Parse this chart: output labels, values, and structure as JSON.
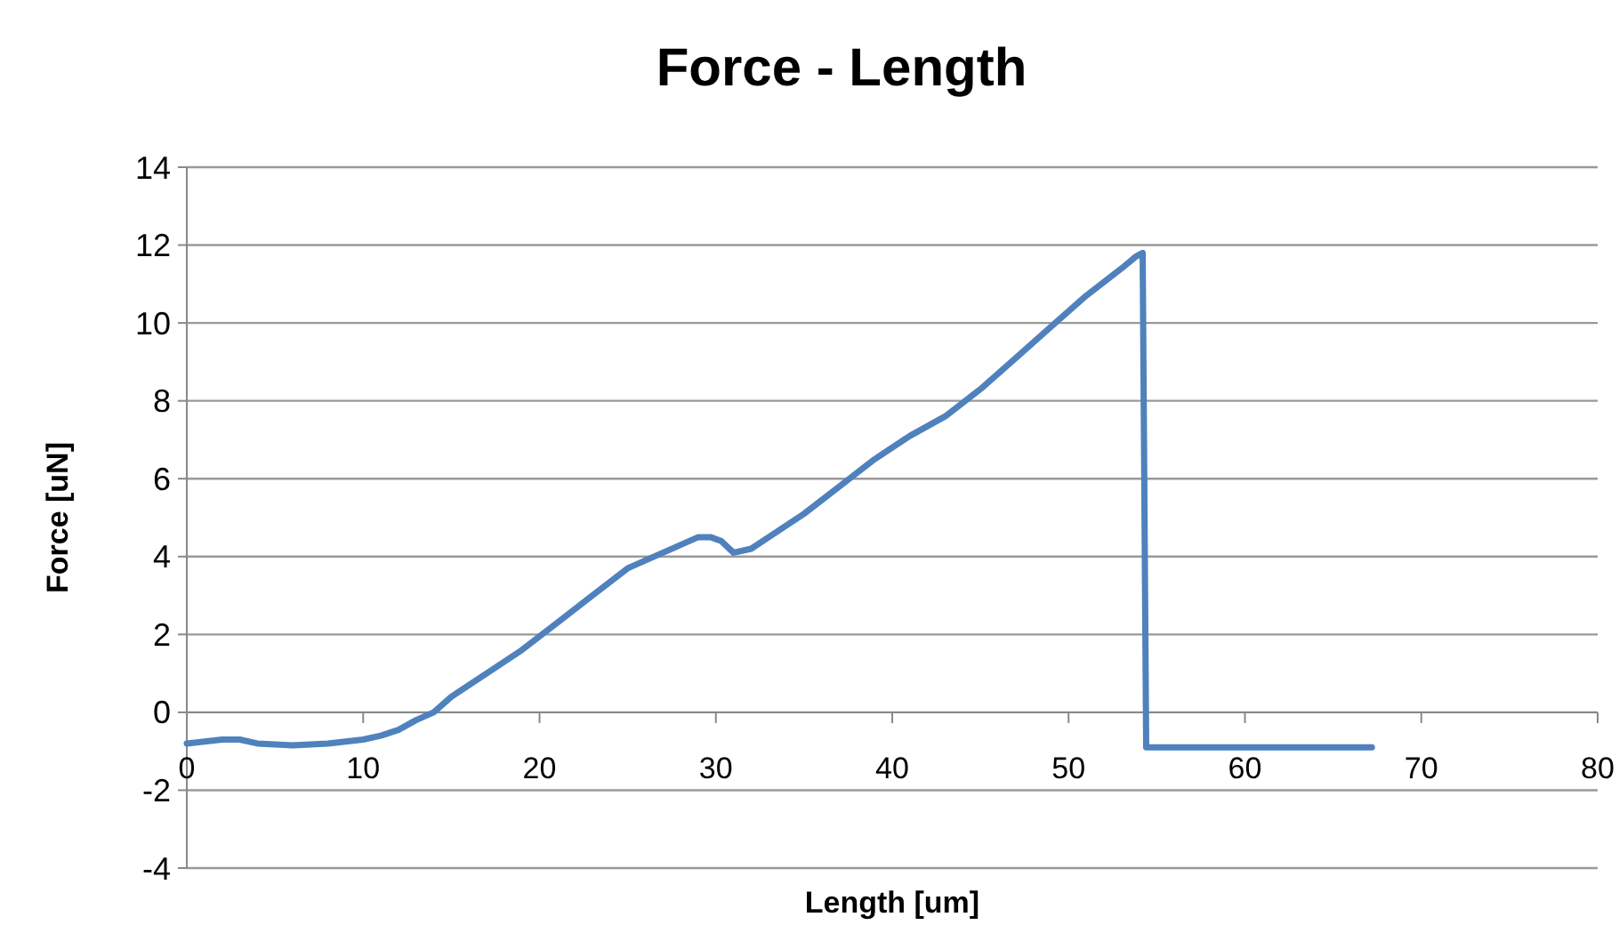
{
  "chart_data": {
    "type": "line",
    "title": "Force - Length",
    "xlabel": "Length [um]",
    "ylabel": "Force [uN]",
    "x": [
      0,
      2,
      3,
      4,
      6,
      8,
      10,
      11,
      12,
      13,
      14,
      15,
      17,
      19,
      21,
      23,
      25,
      27,
      28,
      29,
      29.7,
      30.3,
      31,
      32,
      33,
      35,
      37,
      39,
      41,
      43,
      45,
      47,
      49,
      51,
      53,
      53.8,
      54.2,
      54.4,
      55,
      60,
      64,
      67.2
    ],
    "series": [
      {
        "color": "#4f81bd",
        "values": [
          -0.8,
          -0.7,
          -0.7,
          -0.8,
          -0.85,
          -0.8,
          -0.7,
          -0.6,
          -0.45,
          -0.2,
          0,
          0.4,
          1.0,
          1.6,
          2.3,
          3.0,
          3.7,
          4.1,
          4.3,
          4.5,
          4.5,
          4.4,
          4.1,
          4.2,
          4.5,
          5.1,
          5.8,
          6.5,
          7.1,
          7.6,
          8.3,
          9.1,
          9.9,
          10.7,
          11.4,
          11.7,
          11.8,
          -0.9,
          -0.9,
          -0.9,
          -0.9,
          -0.9
        ]
      }
    ],
    "xlim": [
      0,
      80
    ],
    "xticks": [
      0,
      10,
      20,
      30,
      40,
      50,
      60,
      70,
      80
    ],
    "ylim": [
      -4,
      14
    ],
    "yticks": [
      -4,
      -2,
      0,
      2,
      4,
      6,
      8,
      10,
      12,
      14
    ],
    "grid": "y",
    "marker": "none",
    "line_style": "solid"
  }
}
